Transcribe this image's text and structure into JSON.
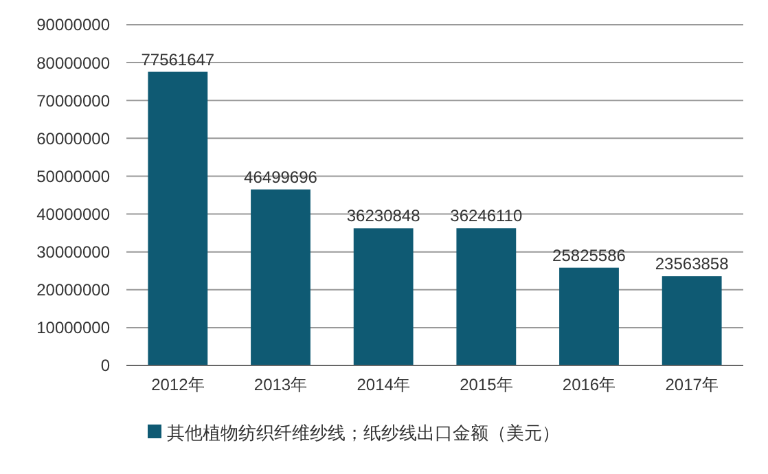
{
  "chart_data": {
    "type": "bar",
    "categories": [
      "2012年",
      "2013年",
      "2014年",
      "2015年",
      "2016年",
      "2017年"
    ],
    "series": [
      {
        "name": "其他植物纺织纤维纱线；纸纱线出口金额（美元）",
        "color": "#0f5a73",
        "values": [
          77561647,
          46499696,
          36230848,
          36246110,
          25825586,
          23563858
        ]
      }
    ],
    "ylim": [
      0,
      90000000
    ],
    "yticks": [
      0,
      10000000,
      20000000,
      30000000,
      40000000,
      50000000,
      60000000,
      70000000,
      80000000,
      90000000
    ],
    "grid": "y",
    "legend": "bottom",
    "data_labels": true
  }
}
